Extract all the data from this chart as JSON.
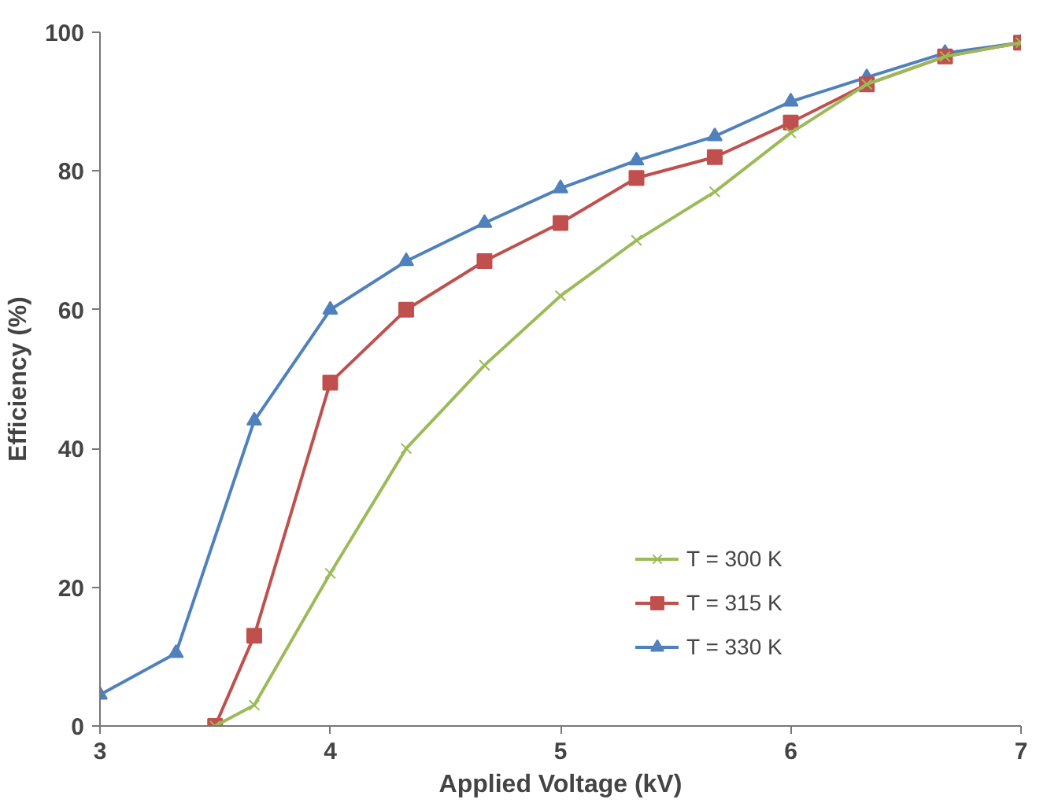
{
  "chart_data": {
    "type": "line",
    "xlabel": "Applied Voltage (kV)",
    "ylabel": "Efficiency (%)",
    "xlim": [
      3,
      7
    ],
    "xticks": [
      3,
      4,
      5,
      6,
      7
    ],
    "ylim": [
      0,
      100
    ],
    "yticks": [
      0,
      20,
      40,
      60,
      80,
      100
    ],
    "grid": false,
    "legend": "bottom",
    "series": [
      {
        "name": "T = 300 K",
        "color": "#9bbb59",
        "marker": "cross",
        "x": [
          3.5,
          3.67,
          4,
          4.33,
          4.67,
          5,
          5.33,
          5.67,
          6,
          6.33,
          6.67,
          7
        ],
        "values": [
          0,
          3,
          22,
          40,
          52,
          62,
          70,
          77,
          85.5,
          92.5,
          96.5,
          98.5
        ]
      },
      {
        "name": "T = 315 K",
        "color": "#c0504d",
        "marker": "square",
        "x": [
          3.5,
          3.67,
          4,
          4.33,
          4.67,
          5,
          5.33,
          5.67,
          6,
          6.33,
          6.67,
          7
        ],
        "values": [
          0,
          13,
          49.5,
          60,
          67,
          72.5,
          79,
          82,
          87,
          92.5,
          96.5,
          98.5
        ]
      },
      {
        "name": "T = 330 K",
        "color": "#4f81bd",
        "marker": "triangle",
        "x": [
          3,
          3.33,
          3.67,
          4,
          4.33,
          4.67,
          5,
          5.33,
          5.67,
          6,
          6.33,
          6.67,
          7
        ],
        "values": [
          4.5,
          10.5,
          44,
          60,
          67,
          72.5,
          77.5,
          81.5,
          85,
          90,
          93.5,
          97,
          98.5
        ]
      }
    ]
  }
}
